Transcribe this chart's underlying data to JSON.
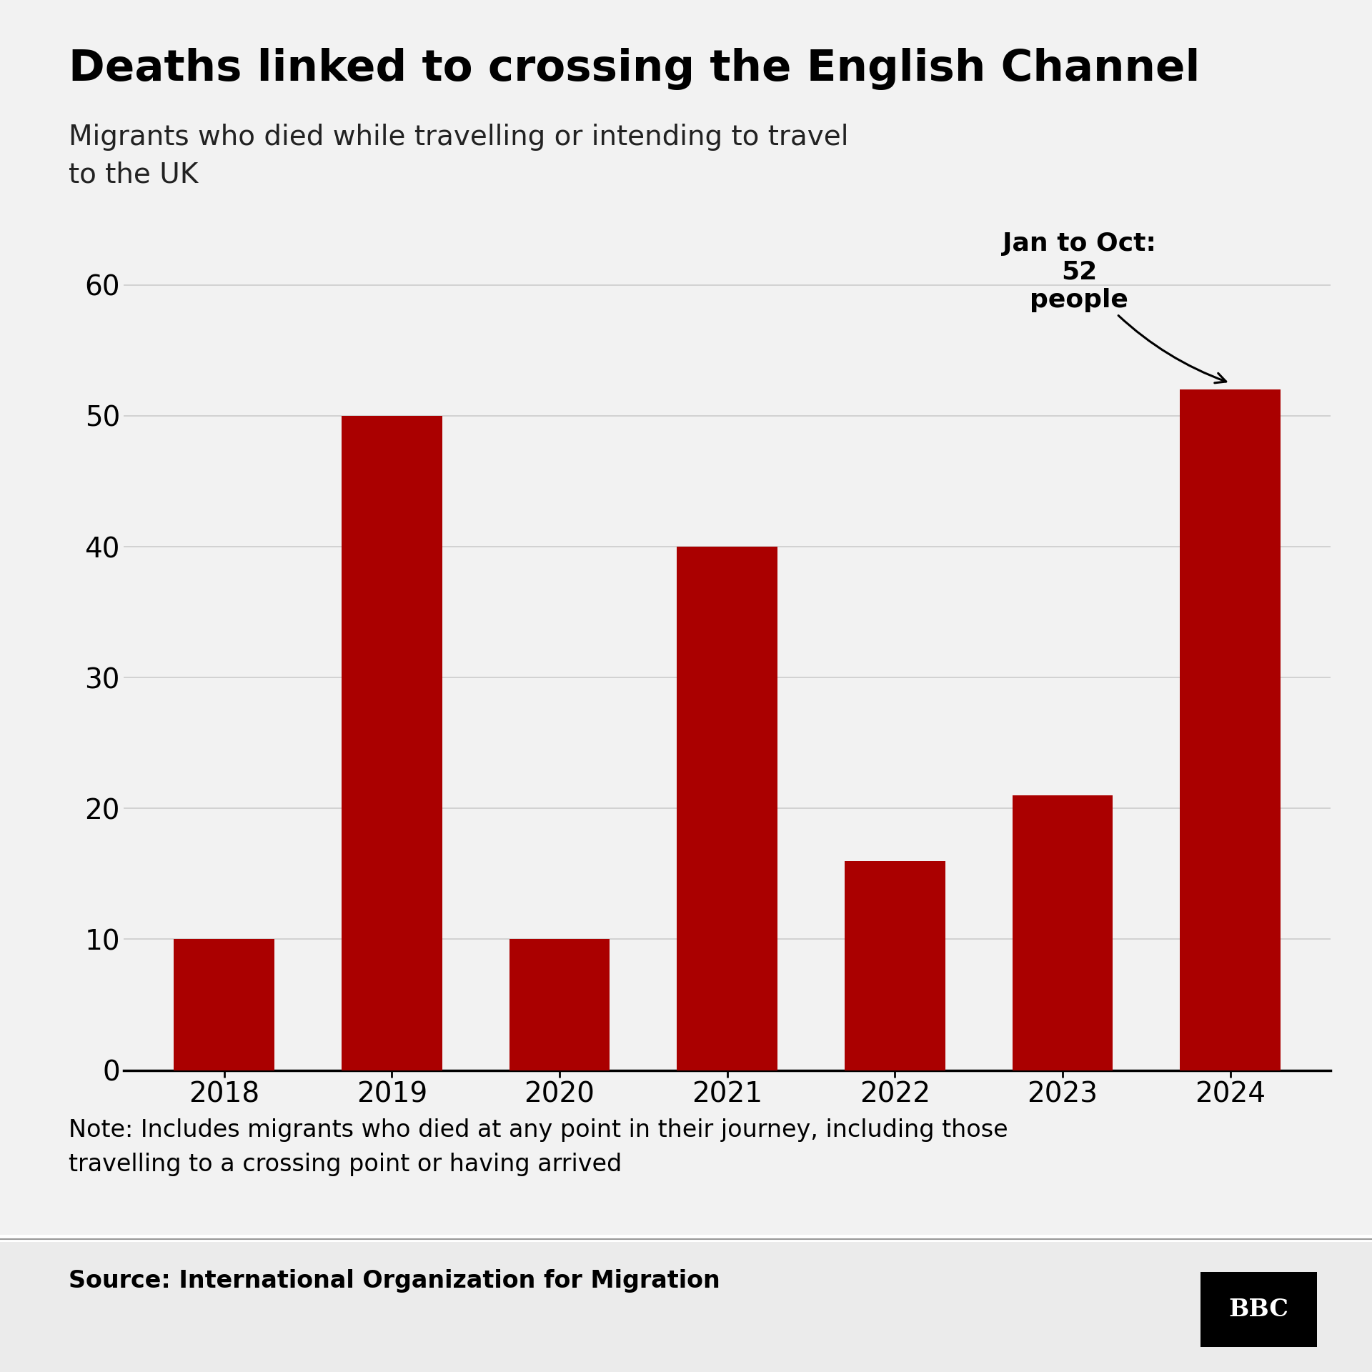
{
  "title": "Deaths linked to crossing the English Channel",
  "subtitle": "Migrants who died while travelling or intending to travel\nto the UK",
  "categories": [
    "2018",
    "2019",
    "2020",
    "2021",
    "2022",
    "2023",
    "2024"
  ],
  "values": [
    10,
    50,
    10,
    40,
    16,
    21,
    52
  ],
  "bar_color": "#AA0000",
  "background_color": "#F2F2F2",
  "source_bg_color": "#EBEBEB",
  "ylim": [
    0,
    65
  ],
  "yticks": [
    0,
    10,
    20,
    30,
    40,
    50,
    60
  ],
  "annotation_text": "Jan to Oct:\n52\npeople",
  "note_text": "Note: Includes migrants who died at any point in their journey, including those\ntravelling to a crossing point or having arrived",
  "source_text": "Source: International Organization for Migration",
  "bbc_logo": "BBC",
  "title_fontsize": 44,
  "subtitle_fontsize": 28,
  "tick_fontsize": 28,
  "annotation_fontsize": 26,
  "note_fontsize": 24,
  "source_fontsize": 24
}
